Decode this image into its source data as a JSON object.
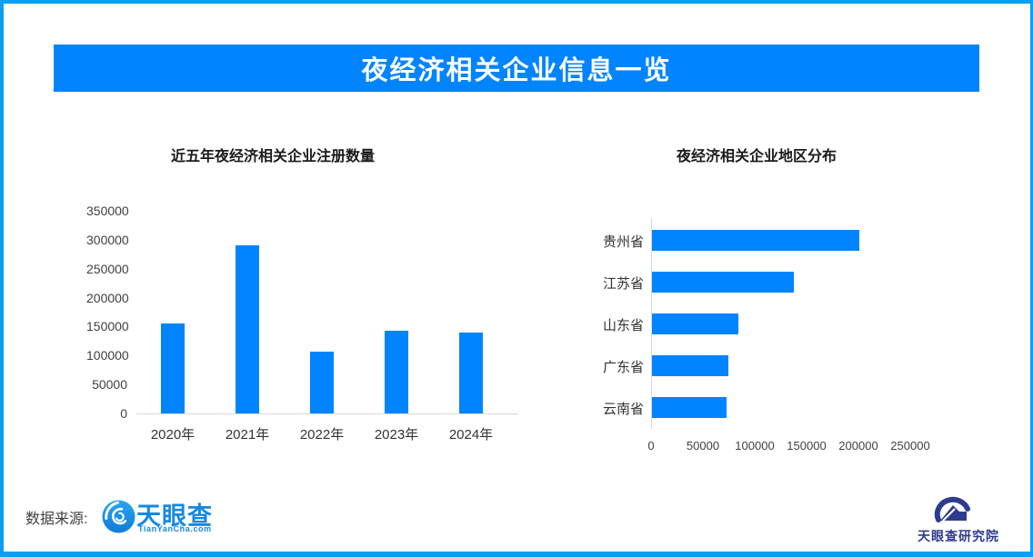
{
  "banner": {
    "title": "夜经济相关企业信息一览"
  },
  "chart_data": [
    {
      "type": "bar",
      "title": "近五年夜经济相关企业注册数量",
      "categories": [
        "2020年",
        "2021年",
        "2022年",
        "2023年",
        "2024年"
      ],
      "values": [
        155000,
        290000,
        107000,
        143000,
        140000
      ],
      "ylim": [
        0,
        350000
      ],
      "yticks": [
        0,
        50000,
        100000,
        150000,
        200000,
        250000,
        300000,
        350000
      ],
      "xlabel": "",
      "ylabel": "",
      "grid": false,
      "bar_color": "#0084ff"
    },
    {
      "type": "bar-horizontal",
      "title": "夜经济相关企业地区分布",
      "categories": [
        "贵州省",
        "江苏省",
        "山东省",
        "广东省",
        "云南省"
      ],
      "values": [
        200000,
        137000,
        83000,
        74000,
        72000
      ],
      "xlim": [
        0,
        250000
      ],
      "xticks": [
        0,
        50000,
        100000,
        150000,
        200000,
        250000
      ],
      "xlabel": "",
      "ylabel": "",
      "grid": false,
      "bar_color": "#0084ff"
    }
  ],
  "footer": {
    "source_label": "数据来源:",
    "tianyancha_logo": {
      "name": "天眼查",
      "subtext": "TianYanCha.com"
    },
    "institute_logo": {
      "name": "天眼查研究院"
    }
  },
  "colors": {
    "accent_blue": "#0084ff",
    "page_border": "#0a9ff2",
    "banner_text": "#ffffff",
    "axis_line": "#d9d9d9",
    "tianyancha_blue": "#1788e2",
    "institute_navy": "#2e3b8f"
  }
}
